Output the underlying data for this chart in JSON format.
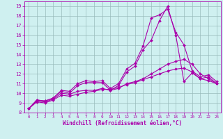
{
  "xlabel": "Windchill (Refroidissement éolien,°C)",
  "bg_color": "#cff0f0",
  "line_color": "#aa00aa",
  "grid_color": "#99bbbb",
  "xlim": [
    -0.5,
    23.5
  ],
  "ylim": [
    8,
    19.5
  ],
  "xticks": [
    0,
    1,
    2,
    3,
    4,
    5,
    6,
    7,
    8,
    9,
    10,
    11,
    12,
    13,
    14,
    15,
    16,
    17,
    18,
    19,
    20,
    21,
    22,
    23
  ],
  "yticks": [
    8,
    9,
    10,
    11,
    12,
    13,
    14,
    15,
    16,
    17,
    18,
    19
  ],
  "series": [
    [
      8.4,
      9.3,
      9.2,
      9.5,
      10.3,
      10.2,
      11.0,
      11.3,
      11.2,
      11.3,
      10.5,
      11.0,
      12.5,
      13.1,
      14.9,
      17.8,
      18.1,
      18.7,
      16.3,
      15.0,
      12.3,
      11.7,
      11.9,
      11.2
    ],
    [
      8.4,
      9.3,
      9.2,
      9.5,
      10.2,
      10.0,
      10.8,
      11.1,
      11.1,
      11.1,
      10.3,
      10.8,
      12.2,
      12.8,
      14.5,
      15.5,
      17.5,
      19.0,
      16.0,
      11.2,
      12.1,
      11.5,
      11.7,
      11.0
    ],
    [
      8.4,
      9.2,
      9.1,
      9.4,
      10.0,
      9.9,
      10.2,
      10.3,
      10.3,
      10.5,
      10.3,
      10.5,
      11.0,
      11.2,
      11.5,
      12.0,
      12.5,
      13.0,
      13.3,
      13.5,
      13.0,
      12.0,
      11.5,
      11.0
    ],
    [
      8.4,
      9.1,
      9.0,
      9.3,
      9.8,
      9.7,
      9.9,
      10.1,
      10.2,
      10.4,
      10.4,
      10.6,
      10.9,
      11.1,
      11.4,
      11.7,
      12.0,
      12.3,
      12.5,
      12.6,
      12.2,
      11.5,
      11.3,
      11.0
    ]
  ],
  "tick_fontsize": 5.5,
  "xlabel_fontsize": 5.5,
  "marker_size": 2.0,
  "line_width": 0.8
}
